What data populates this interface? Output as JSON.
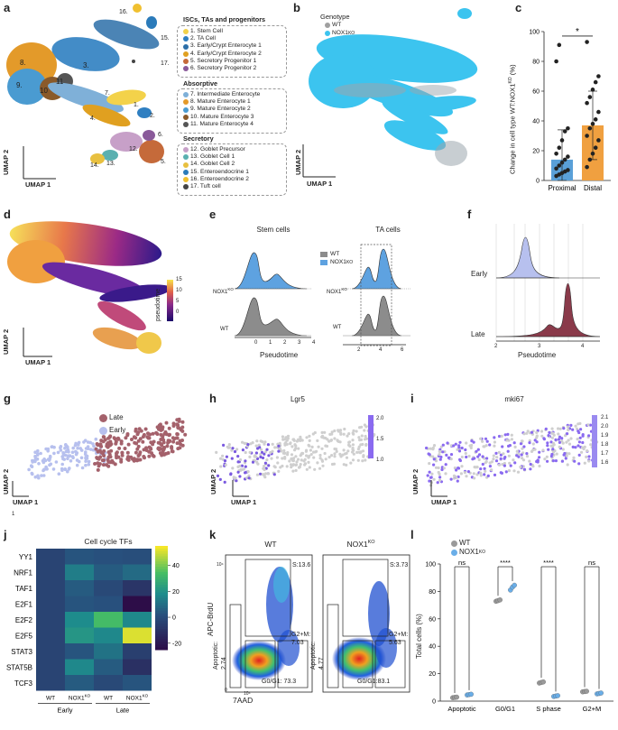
{
  "panel_letters": [
    "a",
    "b",
    "c",
    "d",
    "e",
    "f",
    "g",
    "h",
    "i",
    "j",
    "k",
    "l"
  ],
  "umap": {
    "x": "UMAP 1",
    "y": "UMAP 2"
  },
  "panel_a": {
    "outer_labels": [
      "16.",
      "15.",
      "17.",
      "8.",
      "3.",
      "9.",
      "10",
      "11",
      "7.",
      "1.",
      "4.",
      "2.",
      "6.",
      "14.",
      "13.",
      "12.",
      "5."
    ],
    "groups": [
      {
        "heading": "ISCs, TAs and progenitors",
        "items": [
          {
            "label": "1. Stem Cell",
            "color": "#f3d24a"
          },
          {
            "label": "2. TA Cell",
            "color": "#2f7fc1"
          },
          {
            "label": "3. Early/Crypt Enterocyte 1",
            "color": "#2c6fa8"
          },
          {
            "label": "4. Early/Crypt Enterocyte 2",
            "color": "#e0a020"
          },
          {
            "label": "5. Secretory Progenitor 1",
            "color": "#c56a3a"
          },
          {
            "label": "6. Secretory Progenitor 2",
            "color": "#8a5a9a"
          }
        ]
      },
      {
        "heading": "Absorptive",
        "items": [
          {
            "label": "7. Intermediate Enterocyte",
            "color": "#7fb0d8"
          },
          {
            "label": "8. Mature Enterocyte 1",
            "color": "#e39a2a"
          },
          {
            "label": "9. Mature  Enterocyte 2",
            "color": "#4a9bd1"
          },
          {
            "label": "10. Mature Enterocyte 3",
            "color": "#8a5a2a"
          },
          {
            "label": "11. Mature Enterocyte 4",
            "color": "#555555"
          }
        ]
      },
      {
        "heading": "Secretory",
        "items": [
          {
            "label": "12. Goblet Precursor",
            "color": "#c7a0c8"
          },
          {
            "label": "13. Goblet Cell 1",
            "color": "#5ab0b0"
          },
          {
            "label": "14. Goblet Cell 2",
            "color": "#e8c040"
          },
          {
            "label": "15. Enteroendocrine 1",
            "color": "#2b7bba"
          },
          {
            "label": "16. Enteroendocrine 2",
            "color": "#f0c030"
          },
          {
            "label": "17. Tuft cell",
            "color": "#444444"
          }
        ]
      }
    ]
  },
  "panel_b": {
    "legend_title": "Genotype",
    "entries": [
      {
        "label": "WT",
        "color": "#a0a0a0"
      },
      {
        "label": "NOX1",
        "sup": "KO",
        "color": "#3cc4ef"
      }
    ]
  },
  "panel_c": {
    "chart_data": {
      "type": "bar",
      "ylabel": "Change in cell type WT:NOX1KO (%)",
      "ylabel_main": "Change in cell type WT:NOX1",
      "ylabel_sup": "KO",
      "ylabel_end": " (%)",
      "categories": [
        "Proximal",
        "Distal"
      ],
      "values": [
        14,
        37
      ],
      "errors": [
        20,
        23
      ],
      "colors": [
        "#5aa0d8",
        "#f0a040"
      ],
      "points": [
        [
          3,
          4,
          5,
          6,
          7,
          8,
          10,
          12,
          14,
          16,
          18,
          22,
          27,
          33,
          35,
          80,
          91
        ],
        [
          9,
          14,
          18,
          22,
          27,
          30,
          35,
          38,
          41,
          46,
          52,
          56,
          61,
          66,
          70,
          93
        ]
      ],
      "ylim": [
        0,
        100
      ],
      "yticks": [
        0,
        20,
        40,
        60,
        80,
        100
      ],
      "significance": "*"
    }
  },
  "panel_d": {
    "colorbar_title": "pseudotime",
    "ticks": [
      "15",
      "10",
      "5",
      "0"
    ]
  },
  "panel_e": {
    "titles": [
      "Stem cells",
      "TA cells"
    ],
    "legend": [
      {
        "label": "WT",
        "color": "#8c8c8c"
      },
      {
        "label": "NOX1",
        "sup": "KO",
        "color": "#5ea2e0"
      }
    ],
    "row_labels": [
      {
        "label": "NOX1",
        "sup": "KO"
      },
      {
        "label": "WT",
        "sup": ""
      }
    ],
    "xlabel": "Pseudotime",
    "xticks": [
      "0",
      "1",
      "2",
      "3",
      "4"
    ],
    "xticks_ta": [
      "2",
      "4",
      "6"
    ]
  },
  "panel_f": {
    "row_labels": [
      "Early",
      "Late"
    ],
    "xlabel": "Pseudotime",
    "xticks": [
      "2",
      "3",
      "4"
    ]
  },
  "panel_g": {
    "legend": [
      {
        "label": "Late",
        "color": "#a4616b"
      },
      {
        "label": "Early",
        "color": "#b7c0ee"
      }
    ],
    "stray_label": "1"
  },
  "panel_h": {
    "title": "Lgr5",
    "colorbar_ticks": [
      "2.0",
      "1.5",
      "1.0"
    ]
  },
  "panel_i": {
    "title": "mki67",
    "colorbar_ticks": [
      "2.1",
      "2.0",
      "1.9",
      "1.8",
      "1.7",
      "1.6"
    ]
  },
  "panel_j": {
    "chart_data": {
      "type": "heatmap",
      "title": "Cell cycle TFs",
      "rows": [
        "YY1",
        "NRF1",
        "TAF1",
        "E2F1",
        "E2F2",
        "E2F5",
        "STAT3",
        "STAT5B",
        "TCF3"
      ],
      "columns": [
        "WT",
        "NOX1KO",
        "WT",
        "NOX1KO"
      ],
      "column_labels": [
        {
          "main": "WT",
          "sup": ""
        },
        {
          "main": "NOX1",
          "sup": "KO"
        },
        {
          "main": "WT",
          "sup": ""
        },
        {
          "main": "NOX1",
          "sup": "KO"
        }
      ],
      "groups": [
        "Early",
        "Late"
      ],
      "values": [
        [
          -2,
          4,
          3,
          2
        ],
        [
          -2,
          15,
          6,
          10
        ],
        [
          -2,
          6,
          0,
          -8
        ],
        [
          -2,
          4,
          3,
          -24
        ],
        [
          -2,
          19,
          34,
          18
        ],
        [
          -2,
          22,
          18,
          52
        ],
        [
          -2,
          4,
          12,
          -4
        ],
        [
          -2,
          18,
          6,
          -10
        ],
        [
          -2,
          6,
          0,
          4
        ]
      ],
      "colorbar_ticks": [
        40,
        20,
        0,
        -20
      ],
      "vmin": -25,
      "vmax": 55
    }
  },
  "panel_k": {
    "titles": [
      {
        "main": "WT",
        "sup": ""
      },
      {
        "main": "NOX1",
        "sup": "KO"
      }
    ],
    "ylabel": "APC-BrdU",
    "xlabel": "7AAD",
    "wt": {
      "s": "S:13.6",
      "g2m_a": "G2+M:",
      "g2m_b": "7.03",
      "g0": "G0/G1: 73.3",
      "apo_a": "Apoptotic:",
      "apo_b": "2.74"
    },
    "ko": {
      "s": "S:3.73",
      "g2m_a": "G2+M:",
      "g2m_b": "5.63",
      "g0": "G0/G1:83.1",
      "apo_a": "Apoptotic:",
      "apo_b": "4.77"
    },
    "axis_ticks": [
      "10⁴",
      "10⁴",
      "0"
    ]
  },
  "panel_l": {
    "chart_data": {
      "type": "scatter",
      "ylabel": "Total cells (%)",
      "categories": [
        "Apoptotic",
        "G0/G1",
        "S phase",
        "G2+M"
      ],
      "series": [
        {
          "name": "WT",
          "color": "#9a9a9a",
          "values": [
            [
              2.5,
              2.7,
              2.9
            ],
            [
              72.8,
              73.3,
              73.8
            ],
            [
              13.2,
              13.6,
              14.0
            ],
            [
              6.8,
              7.0,
              7.2
            ]
          ]
        },
        {
          "name": "NOX1KO",
          "color": "#6aaee8",
          "values": [
            [
              4.5,
              4.8,
              5.0
            ],
            [
              81.0,
              83.1,
              84.5
            ],
            [
              3.4,
              3.7,
              4.0
            ],
            [
              5.3,
              5.6,
              5.9
            ]
          ]
        }
      ],
      "legend": [
        {
          "label": "WT",
          "sup": ""
        },
        {
          "label": "NOX1",
          "sup": "KO"
        }
      ],
      "significance": [
        "ns",
        "****",
        "****",
        "ns"
      ],
      "ylim": [
        0,
        100
      ],
      "yticks": [
        0,
        20,
        40,
        60,
        80,
        100
      ]
    }
  }
}
